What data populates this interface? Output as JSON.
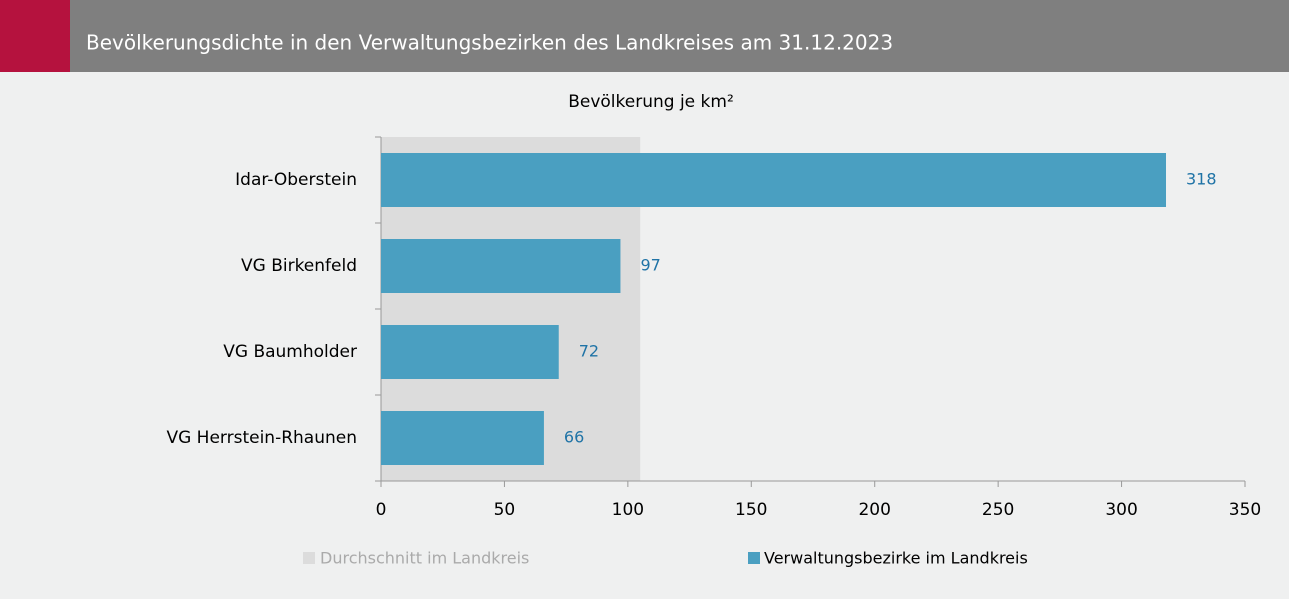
{
  "chart_data": {
    "type": "hbar",
    "title": "Bevölkerungsdichte in den Verwaltungsbezirken des Landkreises am 31.12.2023",
    "axis_label": "Bevölkerung je km²",
    "categories": [
      "Idar-Oberstein",
      "VG Birkenfeld",
      "VG Baumholder",
      "VG Herrstein-Rhaunen"
    ],
    "series": [
      {
        "name": "Verwaltungsbezirke im Landkreis",
        "color": "#4a9fc1",
        "values": [
          318,
          97,
          72,
          66
        ]
      }
    ],
    "average": {
      "name": "Durchschnitt im Landkreis",
      "color": "#dcdcdc",
      "value": 105
    },
    "xlim": [
      0,
      350
    ],
    "xticks": [
      0,
      50,
      100,
      150,
      200,
      250,
      300,
      350
    ]
  }
}
